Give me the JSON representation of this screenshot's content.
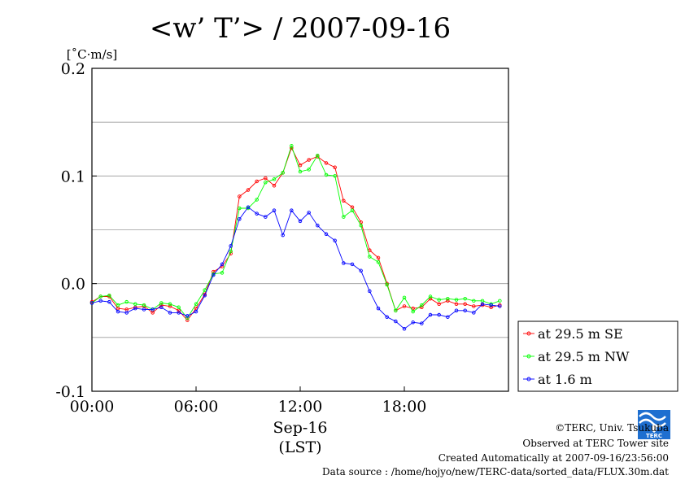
{
  "chart_data": {
    "type": "line",
    "title": "<w’ T’> / 2007-09-16",
    "ylabel": "[˚C·m/s]",
    "ylim": [
      -0.1,
      0.2
    ],
    "y_ticks": [
      -0.1,
      0.0,
      0.1,
      0.2
    ],
    "y_tick_labels": [
      "-0.1",
      "0.0",
      "0.1",
      "0.2"
    ],
    "xlim": [
      0,
      24
    ],
    "x_ticks": [
      0,
      6,
      12,
      18
    ],
    "x_tick_labels": [
      "00:00",
      "06:00",
      "12:00",
      "18:00"
    ],
    "xlabel": "Sep-16",
    "xlabel2": "(LST)",
    "grid_y": [
      -0.05,
      0.0,
      0.05,
      0.1,
      0.15
    ],
    "legend_position": "right-below-plot",
    "x": [
      0.0,
      0.5,
      1.0,
      1.5,
      2.0,
      2.5,
      3.0,
      3.5,
      4.0,
      4.5,
      5.0,
      5.5,
      6.0,
      6.5,
      7.0,
      7.5,
      8.0,
      8.5,
      9.0,
      9.5,
      10.0,
      10.5,
      11.0,
      11.5,
      12.0,
      12.5,
      13.0,
      13.5,
      14.0,
      14.5,
      15.0,
      15.5,
      16.0,
      16.5,
      17.0,
      17.5,
      18.0,
      18.5,
      19.0,
      19.5,
      20.0,
      20.5,
      21.0,
      21.5,
      22.0,
      22.5,
      23.0,
      23.5
    ],
    "series": [
      {
        "name": "at 29.5 m SE",
        "color": "#ff0000",
        "values": [
          -0.017,
          -0.012,
          -0.012,
          -0.023,
          -0.024,
          -0.022,
          -0.021,
          -0.027,
          -0.02,
          -0.021,
          -0.025,
          -0.034,
          -0.023,
          -0.01,
          0.011,
          0.016,
          0.028,
          0.081,
          0.087,
          0.095,
          0.098,
          0.091,
          0.103,
          0.126,
          0.11,
          0.115,
          0.118,
          0.112,
          0.108,
          0.077,
          0.071,
          0.057,
          0.031,
          0.024,
          0.0,
          -0.025,
          -0.021,
          -0.023,
          -0.022,
          -0.014,
          -0.019,
          -0.016,
          -0.019,
          -0.019,
          -0.021,
          -0.02,
          -0.022,
          -0.02
        ]
      },
      {
        "name": "at 29.5 m NW",
        "color": "#00ff00",
        "values": [
          -0.018,
          -0.012,
          -0.011,
          -0.02,
          -0.017,
          -0.019,
          -0.02,
          -0.024,
          -0.018,
          -0.019,
          -0.022,
          -0.032,
          -0.019,
          -0.006,
          0.009,
          0.01,
          0.03,
          0.07,
          0.07,
          0.078,
          0.094,
          0.097,
          0.103,
          0.128,
          0.104,
          0.106,
          0.119,
          0.101,
          0.1,
          0.062,
          0.068,
          0.054,
          0.025,
          0.02,
          -0.001,
          -0.025,
          -0.013,
          -0.026,
          -0.02,
          -0.012,
          -0.015,
          -0.014,
          -0.015,
          -0.014,
          -0.016,
          -0.016,
          -0.019,
          -0.016
        ]
      },
      {
        "name": "at 1.6 m",
        "color": "#0000ff",
        "values": [
          -0.018,
          -0.016,
          -0.017,
          -0.026,
          -0.027,
          -0.023,
          -0.024,
          -0.024,
          -0.022,
          -0.027,
          -0.027,
          -0.03,
          -0.026,
          -0.011,
          0.008,
          0.018,
          0.035,
          0.06,
          0.071,
          0.065,
          0.062,
          0.068,
          0.045,
          0.068,
          0.058,
          0.066,
          0.054,
          0.046,
          0.04,
          0.019,
          0.018,
          0.012,
          -0.007,
          -0.023,
          -0.031,
          -0.035,
          -0.042,
          -0.036,
          -0.037,
          -0.029,
          -0.029,
          -0.031,
          -0.025,
          -0.025,
          -0.027,
          -0.019,
          -0.02,
          -0.021
        ]
      }
    ]
  },
  "credits": {
    "copyright": "©TERC, Univ. Tsukuba",
    "site": "Observed at TERC Tower site",
    "created": "Created Automatically at 2007-09-16/23:56:00",
    "source": "Data source : /home/hojyo/new/TERC-data/sorted_data/FLUX.30m.dat",
    "logo_text": "TERC"
  }
}
